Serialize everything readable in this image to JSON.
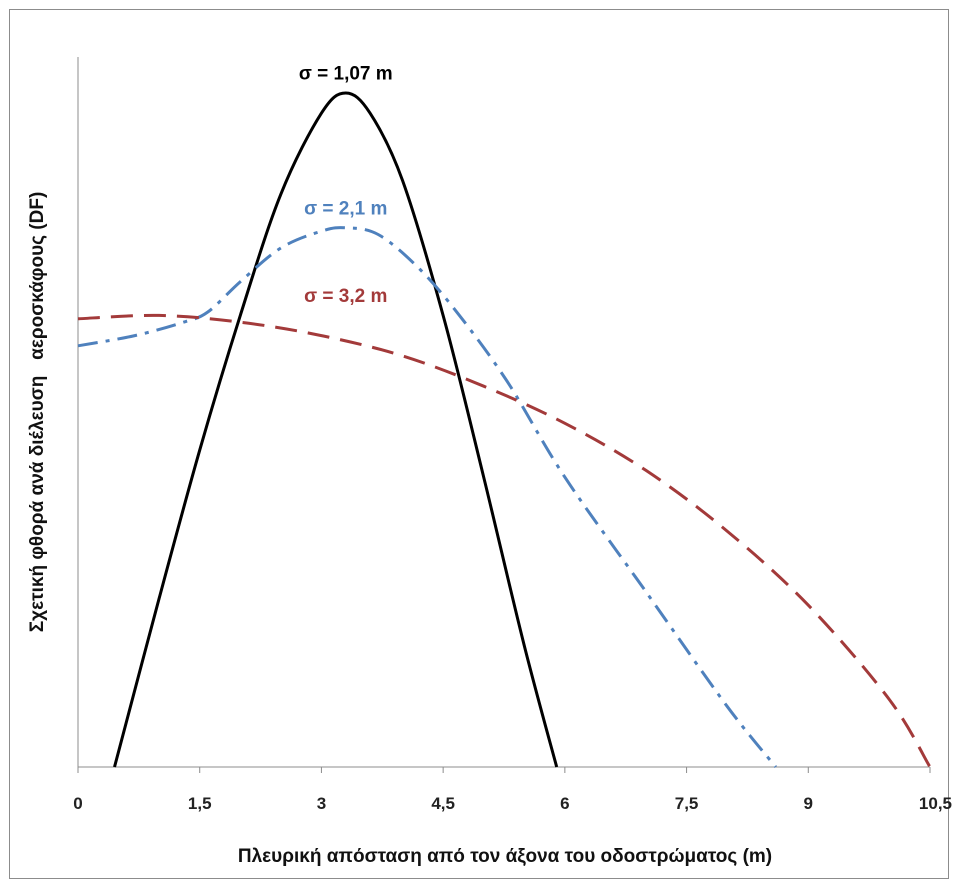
{
  "chart_data": {
    "type": "line",
    "title": "",
    "xlabel": "Πλευρική απόσταση από τον άξονα του οδοστρώματος (m)",
    "ylabel": "Σχετική φθορά ανά διέλευση   αεροσκάφους (DF)",
    "xlim": [
      0,
      10.5
    ],
    "ylim": [
      0,
      1.0
    ],
    "grid": false,
    "legend": "none",
    "x_ticks": [
      "0",
      "1,5",
      "3",
      "4,5",
      "6",
      "7,5",
      "9",
      "10,5"
    ],
    "series": [
      {
        "name": "σ = 1,07 m",
        "color": "#000000",
        "dash": "solid",
        "x": [
          0.45,
          1.0,
          1.5,
          2.0,
          2.5,
          3.0,
          3.3,
          3.6,
          4.0,
          4.5,
          5.0,
          5.5,
          5.9
        ],
        "y": [
          0.0,
          0.25,
          0.47,
          0.67,
          0.85,
          0.97,
          1.0,
          0.97,
          0.87,
          0.67,
          0.43,
          0.18,
          0.0
        ]
      },
      {
        "name": "σ = 2,1 m",
        "color": "#4f81bd",
        "dash": "dashdot",
        "x": [
          0.0,
          0.7,
          1.3,
          1.6,
          2.0,
          2.5,
          3.0,
          3.3,
          3.7,
          4.2,
          4.7,
          5.3,
          6.0,
          7.0,
          8.0,
          8.6
        ],
        "y": [
          0.625,
          0.64,
          0.66,
          0.675,
          0.72,
          0.77,
          0.795,
          0.8,
          0.79,
          0.74,
          0.67,
          0.57,
          0.43,
          0.26,
          0.09,
          0.0
        ]
      },
      {
        "name": "σ = 3,2 m",
        "color": "#a33a3a",
        "dash": "dashed",
        "x": [
          0.0,
          1.0,
          2.0,
          3.0,
          4.0,
          5.0,
          6.0,
          7.0,
          8.0,
          9.0,
          10.0,
          10.5
        ],
        "y": [
          0.665,
          0.67,
          0.66,
          0.64,
          0.61,
          0.565,
          0.51,
          0.44,
          0.35,
          0.24,
          0.1,
          0.0
        ]
      }
    ],
    "annotations": [
      {
        "text": "σ = 1,07 m",
        "x": 3.3,
        "y": 1.02,
        "color": "#000000"
      },
      {
        "text": "σ = 2,1 m",
        "x": 3.3,
        "y": 0.82,
        "color": "#4f81bd"
      },
      {
        "text": "σ = 3,2 m",
        "x": 3.3,
        "y": 0.69,
        "color": "#a33a3a"
      }
    ]
  }
}
